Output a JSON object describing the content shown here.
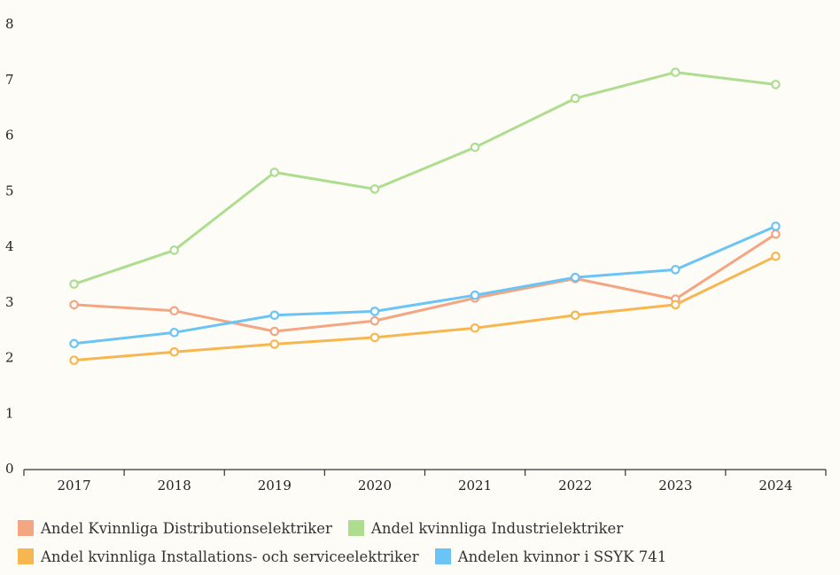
{
  "chart_data": {
    "type": "line",
    "x": [
      "2017",
      "2018",
      "2019",
      "2020",
      "2021",
      "2022",
      "2023",
      "2024"
    ],
    "ylim": [
      0,
      8
    ],
    "yticks": [
      0,
      1,
      2,
      3,
      4,
      5,
      6,
      7,
      8
    ],
    "grid": false,
    "legend_position": "bottom",
    "series": [
      {
        "name": "Andel Kvinnliga Distributionselektriker",
        "color": "#f4a582",
        "values": [
          2.95,
          2.84,
          2.47,
          2.66,
          3.07,
          3.42,
          3.05,
          4.22
        ]
      },
      {
        "name": "Andel kvinnliga Industrielektriker",
        "color": "#addd8e",
        "values": [
          3.32,
          3.93,
          5.33,
          5.03,
          5.78,
          6.66,
          7.13,
          6.91
        ]
      },
      {
        "name": "Andel kvinnliga Installations- och serviceelektriker",
        "color": "#f7b64f",
        "values": [
          1.95,
          2.1,
          2.24,
          2.36,
          2.53,
          2.76,
          2.95,
          3.82
        ]
      },
      {
        "name": "Andelen kvinnor i SSYK 741",
        "color": "#6ac4f5",
        "values": [
          2.25,
          2.45,
          2.76,
          2.83,
          3.12,
          3.44,
          3.58,
          4.36
        ]
      }
    ]
  }
}
